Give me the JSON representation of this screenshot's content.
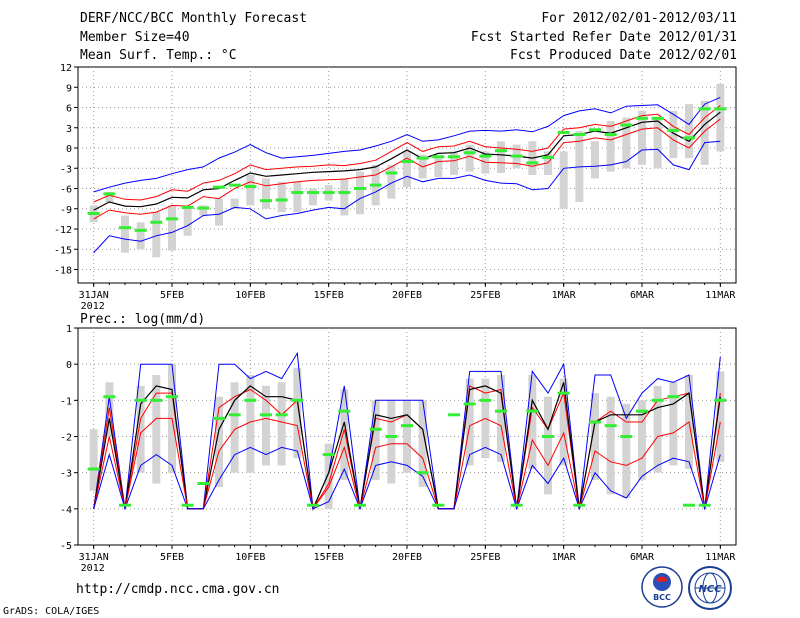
{
  "header": {
    "title": "DERF/NCC/BCC Monthly Forecast",
    "member_size": "Member Size=40",
    "variable": "Mean Surf. Temp.: °C",
    "period": "For 2012/02/01-2012/03/11",
    "started": "Fcst Started Refer Date 2012/01/31",
    "produced": "Fcst Produced Date 2012/02/01"
  },
  "footer": {
    "url": "http://cmdp.ncc.cma.gov.cn",
    "grads": "GrADS: COLA/IGES",
    "logo_bcc": "BCC",
    "logo_ncc": "NCC"
  },
  "colors": {
    "box": "#d3d3d3",
    "outer": "#0000ff",
    "inner": "#ff0000",
    "mean": "#000000",
    "marker": "#33ee33"
  },
  "chart_data": [
    {
      "type": "line",
      "title": "Mean Surf. Temp.: °C",
      "ylabel": "°C",
      "x": [
        0,
        1,
        2,
        3,
        4,
        5,
        6,
        7,
        8,
        9,
        10,
        11,
        12,
        13,
        14,
        15,
        16,
        17,
        18,
        19,
        20,
        21,
        22,
        23,
        24,
        25,
        26,
        27,
        28,
        29,
        30,
        31,
        32,
        33,
        34,
        35,
        36,
        37,
        38,
        39,
        40
      ],
      "xtick_labels": [
        "31JAN",
        "5FEB",
        "10FEB",
        "15FEB",
        "20FEB",
        "25FEB",
        "1MAR",
        "6MAR",
        "11MAR"
      ],
      "xtick_positions": [
        0,
        5,
        10,
        15,
        20,
        25,
        30,
        35,
        40
      ],
      "xtick_year": "2012",
      "ylim": [
        -20,
        12
      ],
      "ytick_labels": [
        "12",
        "9",
        "6",
        "3",
        "0",
        "-3",
        "-6",
        "-9",
        "-12",
        "-15",
        "-18"
      ],
      "ytick_values": [
        12,
        9,
        6,
        3,
        0,
        -3,
        -6,
        -9,
        -12,
        -15,
        -18
      ],
      "series": [
        {
          "name": "max",
          "values": [
            -6.5,
            -5.8,
            -5.2,
            -4.8,
            -4.5,
            -3.8,
            -3.2,
            -2.8,
            -1.5,
            -0.6,
            0.5,
            -0.7,
            -1.5,
            -1.3,
            -1.1,
            -0.8,
            -0.5,
            -0.3,
            0.3,
            1.0,
            2.0,
            1.0,
            1.2,
            1.8,
            2.5,
            2.6,
            2.5,
            2.7,
            2.4,
            3.2,
            4.8,
            5.5,
            5.8,
            5.2,
            6.2,
            6.3,
            6.4,
            5.0,
            3.5,
            6.5,
            7.5
          ]
        },
        {
          "name": "p75",
          "values": [
            -8.0,
            -7.0,
            -7.6,
            -7.7,
            -7.2,
            -6.2,
            -6.4,
            -5.2,
            -4.8,
            -3.8,
            -2.5,
            -3.2,
            -3.0,
            -2.8,
            -2.7,
            -2.5,
            -2.6,
            -2.3,
            -1.8,
            -0.5,
            0.8,
            -0.5,
            0.2,
            0.3,
            1.0,
            0.2,
            0.0,
            -0.2,
            -0.5,
            0.0,
            2.8,
            3.0,
            3.5,
            3.2,
            4.0,
            4.8,
            5.0,
            3.2,
            2.0,
            4.5,
            6.3
          ]
        },
        {
          "name": "mean",
          "values": [
            -9.2,
            -8.0,
            -8.6,
            -8.7,
            -8.3,
            -7.3,
            -7.4,
            -6.2,
            -6.0,
            -4.8,
            -3.7,
            -4.2,
            -4.0,
            -3.8,
            -3.6,
            -3.5,
            -3.4,
            -3.2,
            -2.8,
            -1.6,
            -0.3,
            -1.6,
            -0.8,
            -0.7,
            0.0,
            -0.9,
            -1.0,
            -1.2,
            -1.5,
            -1.0,
            1.8,
            2.0,
            2.5,
            2.2,
            3.0,
            3.8,
            4.0,
            2.2,
            1.0,
            3.5,
            5.3
          ]
        },
        {
          "name": "p25",
          "values": [
            -10.5,
            -9.2,
            -9.6,
            -9.8,
            -9.5,
            -8.5,
            -8.6,
            -7.2,
            -7.5,
            -6.0,
            -5.0,
            -5.6,
            -5.3,
            -5.0,
            -4.8,
            -4.7,
            -4.6,
            -4.3,
            -4.0,
            -2.8,
            -1.5,
            -2.8,
            -2.0,
            -1.9,
            -1.2,
            -2.1,
            -2.2,
            -2.3,
            -2.7,
            -2.2,
            0.8,
            1.0,
            1.5,
            1.2,
            2.0,
            2.8,
            3.0,
            1.2,
            0.0,
            2.5,
            4.3
          ]
        },
        {
          "name": "min",
          "values": [
            -15.5,
            -13.0,
            -13.5,
            -13.8,
            -13.0,
            -12.5,
            -11.5,
            -10.0,
            -9.8,
            -8.8,
            -9.0,
            -10.5,
            -10.0,
            -9.7,
            -9.2,
            -8.8,
            -9.0,
            -7.5,
            -6.5,
            -5.2,
            -4.2,
            -5.0,
            -4.5,
            -4.5,
            -4.0,
            -4.8,
            -5.2,
            -5.3,
            -6.2,
            -6.0,
            -3.0,
            -2.8,
            -2.7,
            -2.5,
            -2.0,
            -0.3,
            -0.2,
            -2.5,
            -3.2,
            0.8,
            1.0
          ]
        }
      ],
      "boxes": {
        "low": [
          -11,
          -8,
          -15.5,
          -15,
          -16.2,
          -15.2,
          -13,
          -10,
          -11.5,
          -9,
          -8.5,
          -9,
          -9.5,
          -9.5,
          -8.5,
          -7.8,
          -10,
          -9.8,
          -8.5,
          -7.5,
          -5.8,
          -4.5,
          -4.3,
          -4,
          -3.5,
          -3.8,
          -3.7,
          -3,
          -4,
          -4,
          -9,
          -8,
          -4.5,
          -3.5,
          -3,
          -2.5,
          -3,
          -1.5,
          -1.5,
          -2.5,
          -0.5
        ],
        "high": [
          -8.5,
          -6.5,
          -10,
          -11,
          -9.5,
          -8.5,
          -9,
          -8.5,
          -7.5,
          -7.5,
          -4,
          -4.5,
          -5,
          -5,
          -6,
          -5.5,
          -4.5,
          -3.5,
          -2.5,
          -2.5,
          -0.5,
          -1,
          -1.5,
          -0.5,
          0.5,
          -0.5,
          1,
          0.5,
          1,
          -0.5,
          -0.5,
          2.5,
          1,
          4,
          4.5,
          5.5,
          4.5,
          5.5,
          6.5,
          7,
          9.5
        ]
      },
      "markers": [
        -9.7,
        -6.8,
        -11.8,
        -12.2,
        -11.0,
        -10.5,
        -8.8,
        -8.9,
        -5.8,
        -5.5,
        -5.7,
        -7.8,
        -7.7,
        -6.6,
        -6.6,
        -6.6,
        -6.6,
        -6.0,
        -5.5,
        -3.7,
        -2.0,
        -1.5,
        -1.3,
        -1.3,
        -0.7,
        -1.2,
        -0.4,
        -1.2,
        -2.2,
        -1.4,
        2.3,
        2.0,
        2.7,
        2.0,
        3.4,
        4.4,
        4.4,
        2.6,
        1.5,
        5.8,
        5.8
      ]
    },
    {
      "type": "line",
      "title": "Prec.: log(mm/d)",
      "ylabel": "log(mm/d)",
      "x": [
        0,
        1,
        2,
        3,
        4,
        5,
        6,
        7,
        8,
        9,
        10,
        11,
        12,
        13,
        14,
        15,
        16,
        17,
        18,
        19,
        20,
        21,
        22,
        23,
        24,
        25,
        26,
        27,
        28,
        29,
        30,
        31,
        32,
        33,
        34,
        35,
        36,
        37,
        38,
        39,
        40
      ],
      "xtick_labels": [
        "31JAN",
        "5FEB",
        "10FEB",
        "15FEB",
        "20FEB",
        "25FEB",
        "1MAR",
        "6MAR",
        "11MAR"
      ],
      "xtick_positions": [
        0,
        5,
        10,
        15,
        20,
        25,
        30,
        35,
        40
      ],
      "xtick_year": "2012",
      "ylim": [
        -5,
        1
      ],
      "ytick_labels": [
        "1",
        "0",
        "-1",
        "-2",
        "-3",
        "-4",
        "-5"
      ],
      "ytick_values": [
        1,
        0,
        -1,
        -2,
        -3,
        -4,
        -5
      ],
      "series": [
        {
          "name": "max",
          "values": [
            -4,
            -0.9,
            -4,
            0,
            0,
            0,
            -4,
            -4,
            0,
            0,
            -0.4,
            -0.2,
            -0.4,
            0.3,
            -4,
            -3,
            -0.6,
            -4,
            -1,
            -1,
            -1,
            -1,
            -4,
            -4,
            -0.2,
            -0.2,
            -0.2,
            -4,
            -0.2,
            -0.8,
            0,
            -4,
            -0.3,
            -0.3,
            -1.5,
            -0.8,
            -0.4,
            -0.5,
            -0.3,
            -4,
            0.2
          ]
        },
        {
          "name": "p75",
          "values": [
            -4,
            -1.2,
            -4,
            -1.5,
            -0.8,
            -0.8,
            -4,
            -4,
            -1.2,
            -0.9,
            -0.7,
            -1.0,
            -1.4,
            -1.0,
            -4,
            -3.3,
            -1.8,
            -4,
            -1.5,
            -1.6,
            -1.4,
            -1.8,
            -4,
            -4,
            -0.6,
            -0.8,
            -0.7,
            -4,
            -1.2,
            -1.8,
            -0.8,
            -4,
            -1.6,
            -1.3,
            -1.6,
            -1.6,
            -1.0,
            -0.9,
            -0.8,
            -4,
            -0.8
          ]
        },
        {
          "name": "mean",
          "values": [
            -4,
            -1.5,
            -4,
            -1.1,
            -0.6,
            -0.7,
            -4,
            -4,
            -1.8,
            -1.0,
            -0.6,
            -0.9,
            -0.9,
            -1.0,
            -4,
            -3.0,
            -1.6,
            -4,
            -1.4,
            -1.5,
            -1.4,
            -1.8,
            -4,
            -4,
            -0.7,
            -0.6,
            -0.8,
            -4,
            -1.0,
            -1.8,
            -0.5,
            -4,
            -1.6,
            -1.4,
            -1.4,
            -1.4,
            -1.2,
            -1.1,
            -0.8,
            -4,
            -0.9
          ]
        },
        {
          "name": "p25",
          "values": [
            -4,
            -2.0,
            -4,
            -1.9,
            -1.5,
            -1.5,
            -4,
            -4,
            -2.4,
            -1.8,
            -1.6,
            -1.5,
            -1.6,
            -1.7,
            -4,
            -3.4,
            -2.3,
            -4,
            -2.3,
            -2.2,
            -2.2,
            -2.6,
            -4,
            -4,
            -1.7,
            -1.5,
            -1.7,
            -4,
            -2.1,
            -2.8,
            -1.9,
            -4,
            -2.4,
            -2.7,
            -2.8,
            -2.6,
            -2.0,
            -1.9,
            -1.6,
            -4,
            -1.6
          ]
        },
        {
          "name": "min",
          "values": [
            -4,
            -2.5,
            -4,
            -2.8,
            -2.5,
            -2.8,
            -4,
            -4,
            -3.2,
            -2.5,
            -2.3,
            -2.5,
            -2.3,
            -2.4,
            -4,
            -3.8,
            -2.9,
            -4,
            -2.8,
            -2.7,
            -2.8,
            -3.1,
            -4,
            -4,
            -2.5,
            -2.3,
            -2.5,
            -4,
            -2.8,
            -3.3,
            -2.6,
            -4,
            -3.0,
            -3.5,
            -3.7,
            -3.1,
            -2.8,
            -2.6,
            -2.7,
            -4,
            -2.5
          ]
        }
      ],
      "boxes": {
        "low": [
          -3.5,
          -2.0,
          -4.0,
          -3.0,
          -3.3,
          -3.0,
          -4.0,
          -4.0,
          -3.4,
          -3.0,
          -3.0,
          -2.8,
          -2.8,
          -2.6,
          -4.0,
          -4.0,
          -3.2,
          -4.0,
          -3.2,
          -3.3,
          -3.0,
          -3.4,
          -4.0,
          -4.0,
          -2.8,
          -2.6,
          -2.7,
          -4.0,
          -2.9,
          -3.6,
          -2.8,
          -4.0,
          -3.2,
          -3.6,
          -3.7,
          -3.2,
          -3.0,
          -2.8,
          -2.9,
          -4.0,
          -2.7
        ],
        "high": [
          -1.8,
          -0.5,
          -4.0,
          -0.6,
          -0.3,
          0.0,
          -4.0,
          -4.0,
          -0.9,
          -0.5,
          -0.3,
          -0.6,
          -0.5,
          -0.1,
          -4.0,
          -2.2,
          -0.7,
          -4.0,
          -1.0,
          -1.0,
          -1.0,
          -1.0,
          -4.0,
          -4.0,
          -0.4,
          -0.4,
          -0.3,
          -4.0,
          -0.3,
          -0.9,
          -0.4,
          -4.0,
          -0.8,
          -0.9,
          -1.1,
          -1.0,
          -0.6,
          -0.5,
          -0.3,
          -4.0,
          -0.2
        ]
      },
      "markers": [
        -2.9,
        -0.9,
        -3.9,
        -1.0,
        -1.0,
        -0.9,
        -3.9,
        -3.3,
        -1.5,
        -1.4,
        -1.0,
        -1.4,
        -1.4,
        -1.0,
        -3.9,
        -2.5,
        -1.3,
        -3.9,
        -1.8,
        -2.0,
        -1.7,
        -3.0,
        -3.9,
        -1.4,
        -1.1,
        -1.0,
        -1.3,
        -3.9,
        -1.3,
        -2.0,
        -0.8,
        -3.9,
        -1.6,
        -1.7,
        -2.0,
        -1.3,
        -1.0,
        -0.9,
        -3.9,
        -3.9,
        -1.0
      ]
    }
  ]
}
